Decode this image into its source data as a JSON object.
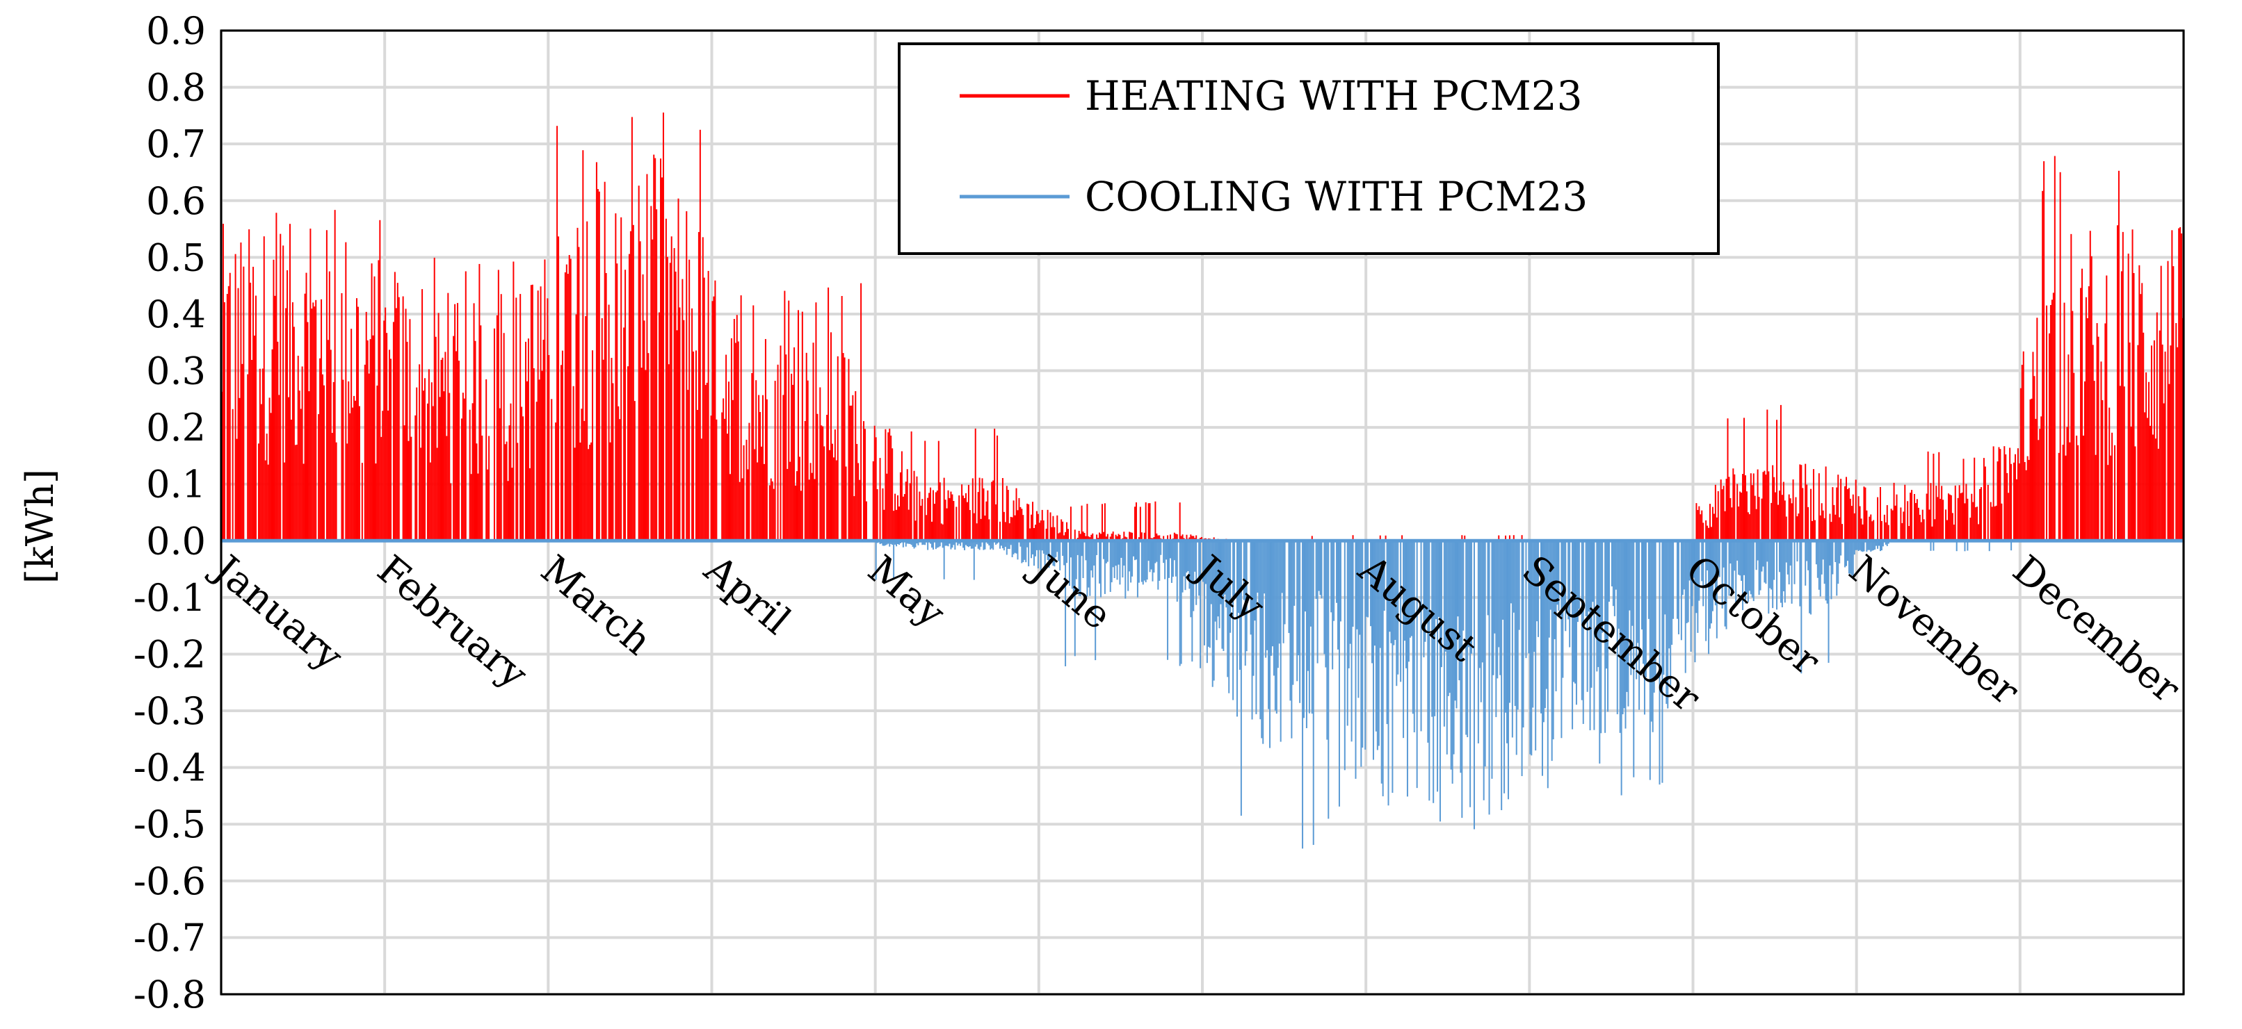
{
  "chart_data": {
    "type": "bar",
    "title": "",
    "ylabel": "[kWh]",
    "xlabel": "",
    "ylim": [
      -0.8,
      0.9
    ],
    "ystep": 0.1,
    "yticks": [
      "0.9",
      "0.8",
      "0.7",
      "0.6",
      "0.5",
      "0.4",
      "0.3",
      "0.2",
      "0.1",
      "0.0",
      "-0.1",
      "-0.2",
      "-0.3",
      "-0.4",
      "-0.5",
      "-0.6",
      "-0.7",
      "-0.8"
    ],
    "categories": [
      "January",
      "February",
      "March",
      "April",
      "May",
      "June",
      "July",
      "August",
      "September",
      "October",
      "November",
      "December"
    ],
    "grid": true,
    "legend_position": "top-center",
    "series": [
      {
        "name": "HEATING WITH PCM23",
        "color": "#ff0000",
        "monthly_envelope_peak_kwh": [
          0.62,
          0.5,
          0.76,
          0.47,
          0.2,
          0.07,
          0.01,
          0.01,
          0.0,
          0.25,
          0.17,
          0.68
        ],
        "monthly_typical_kwh": [
          0.33,
          0.25,
          0.4,
          0.22,
          0.07,
          0.01,
          0.0,
          0.0,
          0.0,
          0.08,
          0.06,
          0.33
        ]
      },
      {
        "name": "COOLING WITH PCM23",
        "color": "#5b9bd5",
        "monthly_envelope_peak_kwh": [
          0.0,
          0.0,
          0.0,
          0.0,
          -0.07,
          -0.23,
          -0.55,
          -0.52,
          -0.45,
          -0.25,
          -0.02,
          0.0
        ],
        "monthly_typical_kwh": [
          0.0,
          0.0,
          0.0,
          0.0,
          -0.01,
          -0.06,
          -0.22,
          -0.3,
          -0.2,
          -0.08,
          0.0,
          0.0
        ]
      }
    ]
  }
}
